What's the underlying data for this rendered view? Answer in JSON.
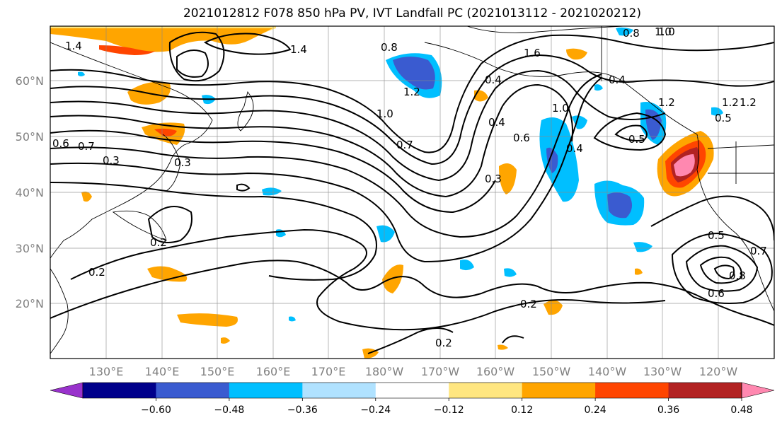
{
  "title": "2021012812 F078 850 hPa PV, IVT Landfall PC (2021013112 - 2021020212)",
  "lat_labels": [
    "60°N",
    "50°N",
    "40°N",
    "30°N",
    "20°N"
  ],
  "lon_labels": [
    "130°E",
    "140°E",
    "150°E",
    "160°E",
    "170°E",
    "180°W",
    "170°W",
    "160°W",
    "150°W",
    "140°W",
    "130°W",
    "120°W"
  ],
  "contour_labels": [
    "1.4",
    "1.4",
    "1.6",
    "1.2",
    "1.0",
    "0.8",
    "1.2",
    "1.0",
    "0.7",
    "0.6",
    "0.7",
    "0.3",
    "0.3",
    "0.2",
    "0.2",
    "0.2",
    "0.2",
    "0.4",
    "0.6",
    "0.4",
    "1.0",
    "0.4",
    "0.4",
    "0.5",
    "0.3",
    "0.5",
    "1.2",
    "0.5",
    "0.7",
    "0.8",
    "0.6",
    "1.2",
    "1.0",
    "0.8"
  ],
  "colorbar": {
    "ticks": [
      "−0.60",
      "−0.48",
      "−0.36",
      "−0.24",
      "−0.12",
      "0.12",
      "0.24",
      "0.36",
      "0.48",
      "0.60"
    ],
    "colors": [
      "#9932cc",
      "#00008b",
      "#3a5bd0",
      "#00bfff",
      "#b0e2ff",
      "#ffffff",
      "#ffe680",
      "#ffa500",
      "#ff4500",
      "#b22222",
      "#ff88b0"
    ]
  }
}
